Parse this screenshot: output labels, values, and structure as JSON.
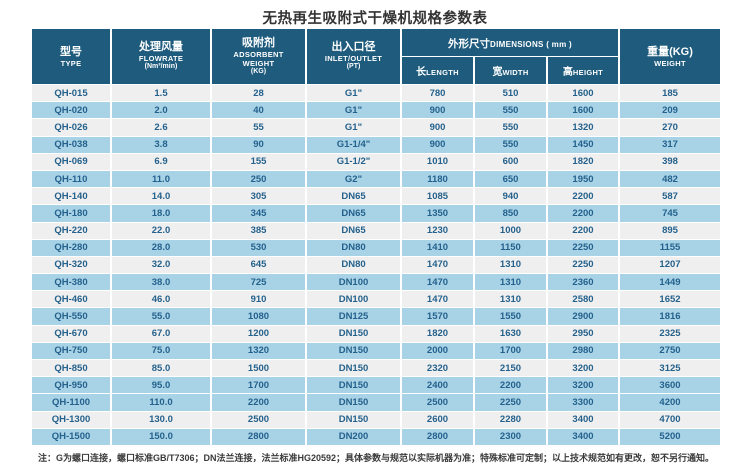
{
  "page": {
    "title": "无热再生吸附式干燥机规格参数表"
  },
  "colors": {
    "header_bg": "#1e5b7d",
    "row_blue": "#a8d3e7",
    "row_gray": "#efefef",
    "cell_text": "#24618c",
    "header_text": "#ffffff",
    "title_text": "#333333"
  },
  "table": {
    "headers": {
      "type_cn": "型号",
      "type_en": "TYPE",
      "flowrate_cn": "处理风量",
      "flowrate_en": "FLOWRATE",
      "flowrate_unit": "(Nm³/min)",
      "adsorbent_cn": "吸附剂",
      "adsorbent_en1": "ADSORBENT",
      "adsorbent_en2": "WEIGHT",
      "adsorbent_unit": "(KG)",
      "inlet_cn": "出入口径",
      "inlet_en": "INLET/OUTLET",
      "inlet_unit": "(PT)",
      "dims_cn": "外形尺寸",
      "dims_en": "DIMENSIONS ( mm )",
      "length_cn": "长",
      "length_en": "LENGTH",
      "width_cn": "宽",
      "width_en": "WIDTH",
      "height_cn": "高",
      "height_en": "HEIGHT",
      "weight_cn": "重量(KG)",
      "weight_en": "WEIGHT"
    },
    "rows": [
      {
        "type": "QH-015",
        "flowrate": "1.5",
        "adsorbent": "28",
        "inlet": "G1\"",
        "length": "780",
        "width": "510",
        "height": "1600",
        "weight": "185",
        "shade": "gray"
      },
      {
        "type": "QH-020",
        "flowrate": "2.0",
        "adsorbent": "40",
        "inlet": "G1\"",
        "length": "900",
        "width": "550",
        "height": "1600",
        "weight": "209",
        "shade": "blue"
      },
      {
        "type": "QH-026",
        "flowrate": "2.6",
        "adsorbent": "55",
        "inlet": "G1\"",
        "length": "900",
        "width": "550",
        "height": "1320",
        "weight": "270",
        "shade": "gray"
      },
      {
        "type": "QH-038",
        "flowrate": "3.8",
        "adsorbent": "90",
        "inlet": "G1-1/4\"",
        "length": "900",
        "width": "550",
        "height": "1450",
        "weight": "317",
        "shade": "blue"
      },
      {
        "type": "QH-069",
        "flowrate": "6.9",
        "adsorbent": "155",
        "inlet": "G1-1/2\"",
        "length": "1010",
        "width": "600",
        "height": "1820",
        "weight": "398",
        "shade": "gray"
      },
      {
        "type": "QH-110",
        "flowrate": "11.0",
        "adsorbent": "250",
        "inlet": "G2\"",
        "length": "1180",
        "width": "650",
        "height": "1950",
        "weight": "482",
        "shade": "blue"
      },
      {
        "type": "QH-140",
        "flowrate": "14.0",
        "adsorbent": "305",
        "inlet": "DN65",
        "length": "1085",
        "width": "940",
        "height": "2200",
        "weight": "587",
        "shade": "gray"
      },
      {
        "type": "QH-180",
        "flowrate": "18.0",
        "adsorbent": "345",
        "inlet": "DN65",
        "length": "1350",
        "width": "850",
        "height": "2200",
        "weight": "745",
        "shade": "blue"
      },
      {
        "type": "QH-220",
        "flowrate": "22.0",
        "adsorbent": "385",
        "inlet": "DN65",
        "length": "1230",
        "width": "1000",
        "height": "2200",
        "weight": "895",
        "shade": "gray"
      },
      {
        "type": "QH-280",
        "flowrate": "28.0",
        "adsorbent": "530",
        "inlet": "DN80",
        "length": "1410",
        "width": "1150",
        "height": "2250",
        "weight": "1155",
        "shade": "blue"
      },
      {
        "type": "QH-320",
        "flowrate": "32.0",
        "adsorbent": "645",
        "inlet": "DN80",
        "length": "1470",
        "width": "1310",
        "height": "2250",
        "weight": "1207",
        "shade": "gray"
      },
      {
        "type": "QH-380",
        "flowrate": "38.0",
        "adsorbent": "725",
        "inlet": "DN100",
        "length": "1470",
        "width": "1310",
        "height": "2360",
        "weight": "1449",
        "shade": "blue"
      },
      {
        "type": "QH-460",
        "flowrate": "46.0",
        "adsorbent": "910",
        "inlet": "DN100",
        "length": "1470",
        "width": "1310",
        "height": "2580",
        "weight": "1652",
        "shade": "gray"
      },
      {
        "type": "QH-550",
        "flowrate": "55.0",
        "adsorbent": "1080",
        "inlet": "DN125",
        "length": "1570",
        "width": "1550",
        "height": "2900",
        "weight": "1816",
        "shade": "blue"
      },
      {
        "type": "QH-670",
        "flowrate": "67.0",
        "adsorbent": "1200",
        "inlet": "DN150",
        "length": "1820",
        "width": "1630",
        "height": "2950",
        "weight": "2325",
        "shade": "gray"
      },
      {
        "type": "QH-750",
        "flowrate": "75.0",
        "adsorbent": "1320",
        "inlet": "DN150",
        "length": "2000",
        "width": "1700",
        "height": "2980",
        "weight": "2750",
        "shade": "blue"
      },
      {
        "type": "QH-850",
        "flowrate": "85.0",
        "adsorbent": "1500",
        "inlet": "DN150",
        "length": "2320",
        "width": "2150",
        "height": "3200",
        "weight": "3125",
        "shade": "gray"
      },
      {
        "type": "QH-950",
        "flowrate": "95.0",
        "adsorbent": "1700",
        "inlet": "DN150",
        "length": "2400",
        "width": "2200",
        "height": "3200",
        "weight": "3600",
        "shade": "blue"
      },
      {
        "type": "QH-1100",
        "flowrate": "110.0",
        "adsorbent": "2200",
        "inlet": "DN150",
        "length": "2500",
        "width": "2250",
        "height": "3300",
        "weight": "4200",
        "shade": "blue"
      },
      {
        "type": "QH-1300",
        "flowrate": "130.0",
        "adsorbent": "2500",
        "inlet": "DN150",
        "length": "2600",
        "width": "2280",
        "height": "3400",
        "weight": "4700",
        "shade": "gray"
      },
      {
        "type": "QH-1500",
        "flowrate": "150.0",
        "adsorbent": "2800",
        "inlet": "DN200",
        "length": "2800",
        "width": "2300",
        "height": "3400",
        "weight": "5200",
        "shade": "blue"
      }
    ]
  },
  "footnote": "注：G为螺口连接，螺口标准GB/T7306；DN法兰连接，法兰标准HG20592；具体参数与规范以实际机器为准；特殊标准可定制；以上技术规范如有更改，恕不另行通知。"
}
